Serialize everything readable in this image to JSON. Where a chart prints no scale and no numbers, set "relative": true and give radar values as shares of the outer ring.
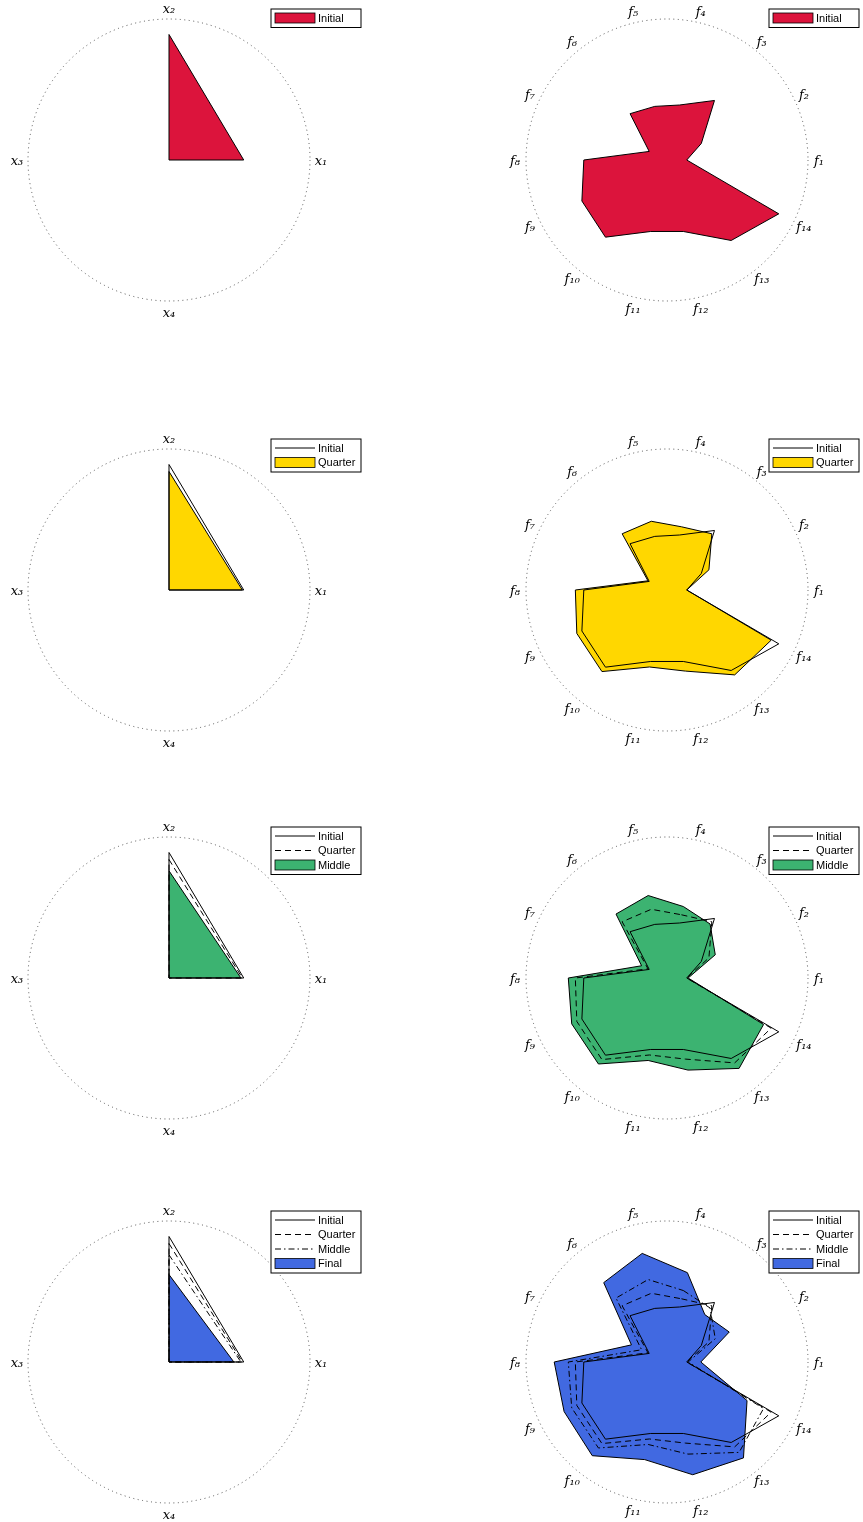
{
  "chart_data": [
    {
      "type": "radar",
      "relative": true,
      "grid": true,
      "legend": "top right",
      "categories": [
        "x₂",
        "x₁",
        "x₄",
        "x₃"
      ],
      "series": [
        {
          "name": "Initial",
          "color": "#dc143c",
          "values": [
            0.89,
            0.53,
            0,
            0
          ]
        }
      ]
    },
    {
      "type": "radar",
      "relative": true,
      "grid": true,
      "legend": "top right",
      "categories": [
        "f₄",
        "f₃",
        "f₂",
        "f₁",
        "f₁₄",
        "f₁₃",
        "f₁₂",
        "f₁₁",
        "f₁₀",
        "f₉",
        "f₈",
        "f₇",
        "f₆",
        "f₅"
      ],
      "series": [
        {
          "name": "Initial",
          "color": "#dc143c",
          "values": [
            0.4,
            0.54,
            0.27,
            0.14,
            0.88,
            0.73,
            0.52,
            0.52,
            0.7,
            0.67,
            0.59,
            0.14,
            0.42,
            0.39
          ]
        }
      ]
    },
    {
      "type": "radar",
      "relative": true,
      "grid": true,
      "legend": "top right",
      "categories": [
        "x₂",
        "x₁",
        "x₄",
        "x₃"
      ],
      "series": [
        {
          "name": "Initial",
          "color": "#000000",
          "line_style": "solid",
          "values": [
            0.89,
            0.53,
            0,
            0
          ]
        },
        {
          "name": "Quarter",
          "color": "#ffd700",
          "values": [
            0.84,
            0.52,
            0,
            0
          ]
        }
      ]
    },
    {
      "type": "radar",
      "relative": true,
      "grid": true,
      "legend": "top right",
      "categories": [
        "f₄",
        "f₃",
        "f₂",
        "f₁",
        "f₁₄",
        "f₁₃",
        "f₁₂",
        "f₁₁",
        "f₁₀",
        "f₉",
        "f₈",
        "f₇",
        "f₆",
        "f₅"
      ],
      "series": [
        {
          "name": "Initial",
          "color": "#000000",
          "line_style": "solid",
          "values": [
            0.4,
            0.54,
            0.27,
            0.14,
            0.88,
            0.73,
            0.52,
            0.52,
            0.7,
            0.67,
            0.59,
            0.14,
            0.42,
            0.39
          ]
        },
        {
          "name": "Quarter",
          "color": "#ffd700",
          "values": [
            0.46,
            0.51,
            0.33,
            0.14,
            0.82,
            0.77,
            0.59,
            0.56,
            0.74,
            0.71,
            0.65,
            0.15,
            0.51,
            0.5
          ]
        }
      ]
    },
    {
      "type": "radar",
      "relative": true,
      "grid": true,
      "legend": "top right",
      "categories": [
        "x₂",
        "x₁",
        "x₄",
        "x₃"
      ],
      "series": [
        {
          "name": "Initial",
          "color": "#000000",
          "line_style": "solid",
          "values": [
            0.89,
            0.53,
            0,
            0
          ]
        },
        {
          "name": "Quarter",
          "color": "#000000",
          "line_style": "dashed",
          "values": [
            0.84,
            0.52,
            0,
            0
          ]
        },
        {
          "name": "Middle",
          "color": "#3cb371",
          "values": [
            0.76,
            0.51,
            0,
            0
          ]
        }
      ]
    },
    {
      "type": "radar",
      "relative": true,
      "grid": true,
      "legend": "top right",
      "categories": [
        "f₄",
        "f₃",
        "f₂",
        "f₁",
        "f₁₄",
        "f₁₃",
        "f₁₂",
        "f₁₁",
        "f₁₀",
        "f₉",
        "f₈",
        "f₇",
        "f₆",
        "f₅"
      ],
      "series": [
        {
          "name": "Initial",
          "color": "#000000",
          "line_style": "solid",
          "values": [
            0.4,
            0.54,
            0.27,
            0.14,
            0.88,
            0.73,
            0.52,
            0.52,
            0.7,
            0.67,
            0.59,
            0.14,
            0.42,
            0.39
          ]
        },
        {
          "name": "Quarter",
          "color": "#000000",
          "line_style": "dashed",
          "values": [
            0.46,
            0.51,
            0.33,
            0.14,
            0.82,
            0.77,
            0.59,
            0.56,
            0.74,
            0.71,
            0.65,
            0.15,
            0.51,
            0.5
          ]
        },
        {
          "name": "Middle",
          "color": "#3cb371",
          "values": [
            0.52,
            0.49,
            0.38,
            0.15,
            0.76,
            0.82,
            0.67,
            0.6,
            0.78,
            0.75,
            0.7,
            0.2,
            0.58,
            0.6
          ]
        }
      ]
    },
    {
      "type": "radar",
      "relative": true,
      "grid": true,
      "legend": "top right",
      "categories": [
        "x₂",
        "x₁",
        "x₄",
        "x₃"
      ],
      "series": [
        {
          "name": "Initial",
          "color": "#000000",
          "line_style": "solid",
          "values": [
            0.89,
            0.53,
            0,
            0
          ]
        },
        {
          "name": "Quarter",
          "color": "#000000",
          "line_style": "dashed",
          "values": [
            0.84,
            0.52,
            0,
            0
          ]
        },
        {
          "name": "Middle",
          "color": "#000000",
          "line_style": "dashdot",
          "values": [
            0.76,
            0.51,
            0,
            0
          ]
        },
        {
          "name": "Final",
          "color": "#4169e1",
          "values": [
            0.62,
            0.46,
            0,
            0
          ]
        }
      ]
    },
    {
      "type": "radar",
      "relative": true,
      "grid": true,
      "legend": "top right",
      "categories": [
        "f₄",
        "f₃",
        "f₂",
        "f₁",
        "f₁₄",
        "f₁₃",
        "f₁₂",
        "f₁₁",
        "f₁₀",
        "f₉",
        "f₈",
        "f₇",
        "f₆",
        "f₅"
      ],
      "series": [
        {
          "name": "Initial",
          "color": "#000000",
          "line_style": "solid",
          "values": [
            0.4,
            0.54,
            0.27,
            0.14,
            0.88,
            0.73,
            0.52,
            0.52,
            0.7,
            0.67,
            0.59,
            0.14,
            0.42,
            0.39
          ]
        },
        {
          "name": "Quarter",
          "color": "#000000",
          "line_style": "dashed",
          "values": [
            0.46,
            0.51,
            0.33,
            0.14,
            0.82,
            0.77,
            0.59,
            0.56,
            0.74,
            0.71,
            0.65,
            0.15,
            0.51,
            0.5
          ]
        },
        {
          "name": "Middle",
          "color": "#000000",
          "line_style": "dashdot",
          "values": [
            0.52,
            0.49,
            0.38,
            0.15,
            0.76,
            0.82,
            0.67,
            0.6,
            0.78,
            0.75,
            0.7,
            0.2,
            0.58,
            0.6
          ]
        },
        {
          "name": "Final",
          "color": "#4169e1",
          "values": [
            0.65,
            0.43,
            0.49,
            0.24,
            0.63,
            0.87,
            0.82,
            0.71,
            0.85,
            0.81,
            0.8,
            0.28,
            0.72,
            0.79
          ]
        }
      ]
    }
  ]
}
